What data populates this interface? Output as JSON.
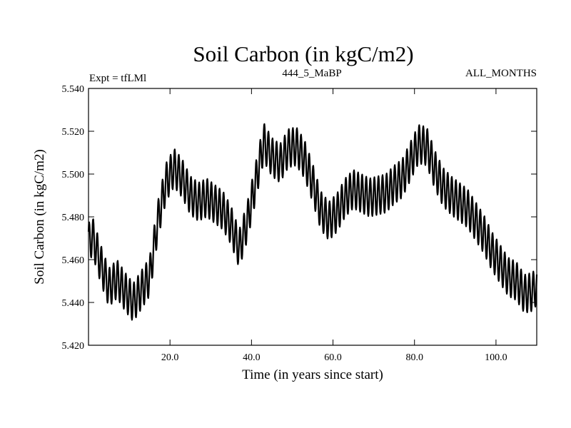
{
  "chart_data": {
    "type": "line",
    "title": "Soil Carbon (in kgC/m2)",
    "subtitle_left": "Expt = tfLMl",
    "subtitle_center": "444_5_MaBP",
    "subtitle_right": "ALL_MONTHS",
    "xlabel": "Time (in years since start)",
    "ylabel": "Soil Carbon (in kgC/m2)",
    "xlim": [
      0,
      110
    ],
    "ylim": [
      5.42,
      5.54
    ],
    "x_ticks": [
      20,
      40,
      60,
      80,
      100
    ],
    "x_tick_labels": [
      "20.0",
      "40.0",
      "60.0",
      "80.0",
      "100.0"
    ],
    "y_ticks": [
      5.42,
      5.44,
      5.46,
      5.48,
      5.5,
      5.52,
      5.54
    ],
    "y_tick_labels": [
      "5.420",
      "5.440",
      "5.460",
      "5.480",
      "5.500",
      "5.520",
      "5.540"
    ],
    "grid": false,
    "series": [
      {
        "name": "Soil Carbon",
        "color": "#000000",
        "samples_per_year": 12,
        "seasonal_amplitude": 0.009,
        "annual_mean_knots": [
          [
            0,
            5.468
          ],
          [
            1,
            5.471
          ],
          [
            3,
            5.458
          ],
          [
            5,
            5.447
          ],
          [
            7,
            5.451
          ],
          [
            9,
            5.445
          ],
          [
            11,
            5.44
          ],
          [
            13,
            5.446
          ],
          [
            15,
            5.452
          ],
          [
            17,
            5.478
          ],
          [
            19,
            5.496
          ],
          [
            21,
            5.503
          ],
          [
            23,
            5.498
          ],
          [
            25,
            5.49
          ],
          [
            27,
            5.487
          ],
          [
            29,
            5.489
          ],
          [
            31,
            5.486
          ],
          [
            33,
            5.483
          ],
          [
            35,
            5.476
          ],
          [
            37,
            5.465
          ],
          [
            39,
            5.478
          ],
          [
            41,
            5.496
          ],
          [
            43,
            5.515
          ],
          [
            45,
            5.508
          ],
          [
            47,
            5.505
          ],
          [
            49,
            5.512
          ],
          [
            51,
            5.513
          ],
          [
            53,
            5.507
          ],
          [
            55,
            5.496
          ],
          [
            57,
            5.483
          ],
          [
            59,
            5.478
          ],
          [
            61,
            5.482
          ],
          [
            63,
            5.489
          ],
          [
            65,
            5.493
          ],
          [
            67,
            5.491
          ],
          [
            69,
            5.489
          ],
          [
            71,
            5.49
          ],
          [
            73,
            5.491
          ],
          [
            75,
            5.495
          ],
          [
            77,
            5.498
          ],
          [
            79,
            5.506
          ],
          [
            81,
            5.514
          ],
          [
            83,
            5.513
          ],
          [
            85,
            5.502
          ],
          [
            87,
            5.494
          ],
          [
            89,
            5.49
          ],
          [
            91,
            5.487
          ],
          [
            93,
            5.484
          ],
          [
            95,
            5.478
          ],
          [
            97,
            5.472
          ],
          [
            99,
            5.464
          ],
          [
            101,
            5.458
          ],
          [
            103,
            5.452
          ],
          [
            105,
            5.45
          ],
          [
            107,
            5.444
          ],
          [
            109,
            5.445
          ],
          [
            110,
            5.448
          ]
        ]
      }
    ]
  }
}
